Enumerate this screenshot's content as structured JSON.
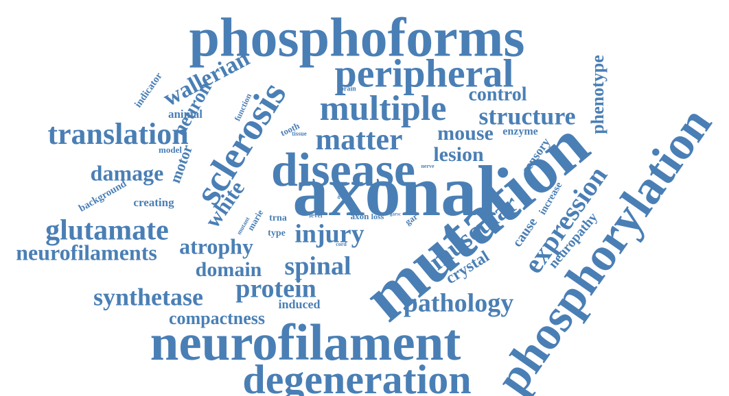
{
  "color": "#4a7fb5",
  "words": [
    "phosphoforms",
    "axonal",
    "mutation",
    "neurofilament",
    "phosphorylation",
    "disease",
    "degeneration",
    "sclerosis",
    "peripheral",
    "multiple",
    "matter",
    "translation",
    "glutamate",
    "expression",
    "muscular",
    "injury",
    "spinal",
    "protein",
    "pathology",
    "structure",
    "synthetase",
    "neurofilaments",
    "atrophy",
    "wallerian",
    "damage",
    "white",
    "mouse",
    "lesion",
    "control",
    "neuron",
    "domain",
    "phenotype",
    "compactness",
    "crystal",
    "neuropathy",
    "motor",
    "cause",
    "induced",
    "sensory",
    "increase",
    "animal",
    "creating",
    "background",
    "enzyme",
    "indicator",
    "model",
    "function",
    "tooth",
    "type",
    "marie",
    "trna",
    "axon",
    "loss",
    "gar",
    "level",
    "mutant",
    "brain",
    "tissue",
    "nerve",
    "more",
    "garsc",
    "cord"
  ]
}
